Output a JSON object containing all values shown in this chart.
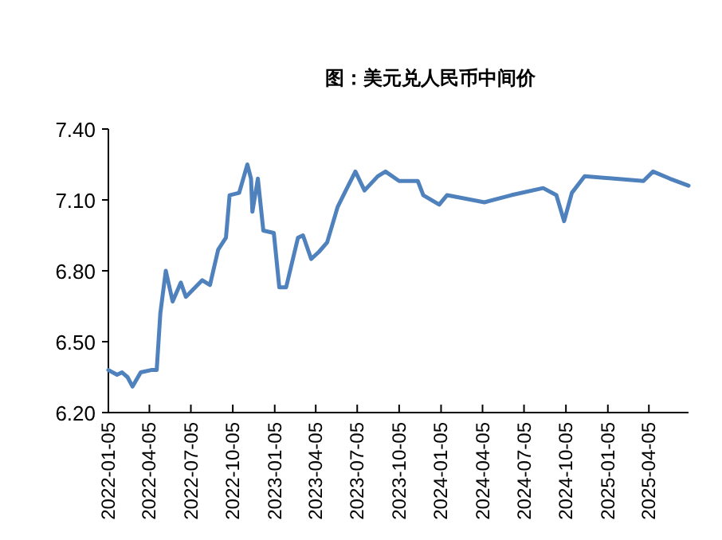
{
  "chart_data": {
    "type": "line",
    "title": "图：美元兑人民币中间价",
    "x": [
      "2022-01-05",
      "2022-01-24",
      "2022-02-04",
      "2022-02-16",
      "2022-02-27",
      "2022-03-17",
      "2022-04-09",
      "2022-04-21",
      "2022-04-29",
      "2022-05-11",
      "2022-05-26",
      "2022-06-13",
      "2022-06-24",
      "2022-07-30",
      "2022-08-16",
      "2022-09-03",
      "2022-09-20",
      "2022-09-28",
      "2022-10-19",
      "2022-11-06",
      "2022-11-14",
      "2022-11-17",
      "2022-11-29",
      "2022-12-11",
      "2023-01-03",
      "2023-01-15",
      "2023-01-30",
      "2023-02-25",
      "2023-03-08",
      "2023-03-26",
      "2023-04-12",
      "2023-04-30",
      "2023-05-23",
      "2023-06-10",
      "2023-07-01",
      "2023-07-21",
      "2023-08-19",
      "2023-09-05",
      "2023-10-05",
      "2023-11-15",
      "2023-11-27",
      "2024-01-01",
      "2024-01-18",
      "2024-04-09",
      "2024-06-07",
      "2024-08-16",
      "2024-09-14",
      "2024-10-01",
      "2024-10-18",
      "2024-11-15",
      "2025-01-19",
      "2025-03-24",
      "2025-04-14",
      "2025-05-21",
      "2025-07-01"
    ],
    "series": [
      {
        "color": "#4f81bd",
        "values": [
          6.38,
          6.36,
          6.37,
          6.35,
          6.31,
          6.37,
          6.38,
          6.38,
          6.62,
          6.8,
          6.67,
          6.75,
          6.69,
          6.76,
          6.74,
          6.89,
          6.94,
          7.12,
          7.13,
          7.25,
          7.19,
          7.05,
          7.19,
          6.97,
          6.96,
          6.73,
          6.73,
          6.94,
          6.95,
          6.85,
          6.88,
          6.92,
          7.07,
          7.14,
          7.22,
          7.14,
          7.2,
          7.22,
          7.18,
          7.18,
          7.12,
          7.08,
          7.12,
          7.09,
          7.12,
          7.15,
          7.12,
          7.01,
          7.13,
          7.2,
          7.19,
          7.18,
          7.22,
          7.19,
          7.16
        ]
      }
    ],
    "xlim": [
      "2022-01-05",
      "2025-07-01"
    ],
    "xticks": [
      "2022-01-05",
      "2022-04-05",
      "2022-07-05",
      "2022-10-05",
      "2023-01-05",
      "2023-04-05",
      "2023-07-05",
      "2023-10-05",
      "2024-01-05",
      "2024-04-05",
      "2024-07-05",
      "2024-10-05",
      "2025-01-05",
      "2025-04-05"
    ],
    "ylim": [
      6.2,
      7.4
    ],
    "yticks": [
      {
        "value": 6.2,
        "label": "6.20"
      },
      {
        "value": 6.5,
        "label": "6.50"
      },
      {
        "value": 6.8,
        "label": "6.80"
      },
      {
        "value": 7.1,
        "label": "7.10"
      },
      {
        "value": 7.4,
        "label": "7.40"
      }
    ],
    "grid": false,
    "marker": "none",
    "line_style": "solid"
  }
}
